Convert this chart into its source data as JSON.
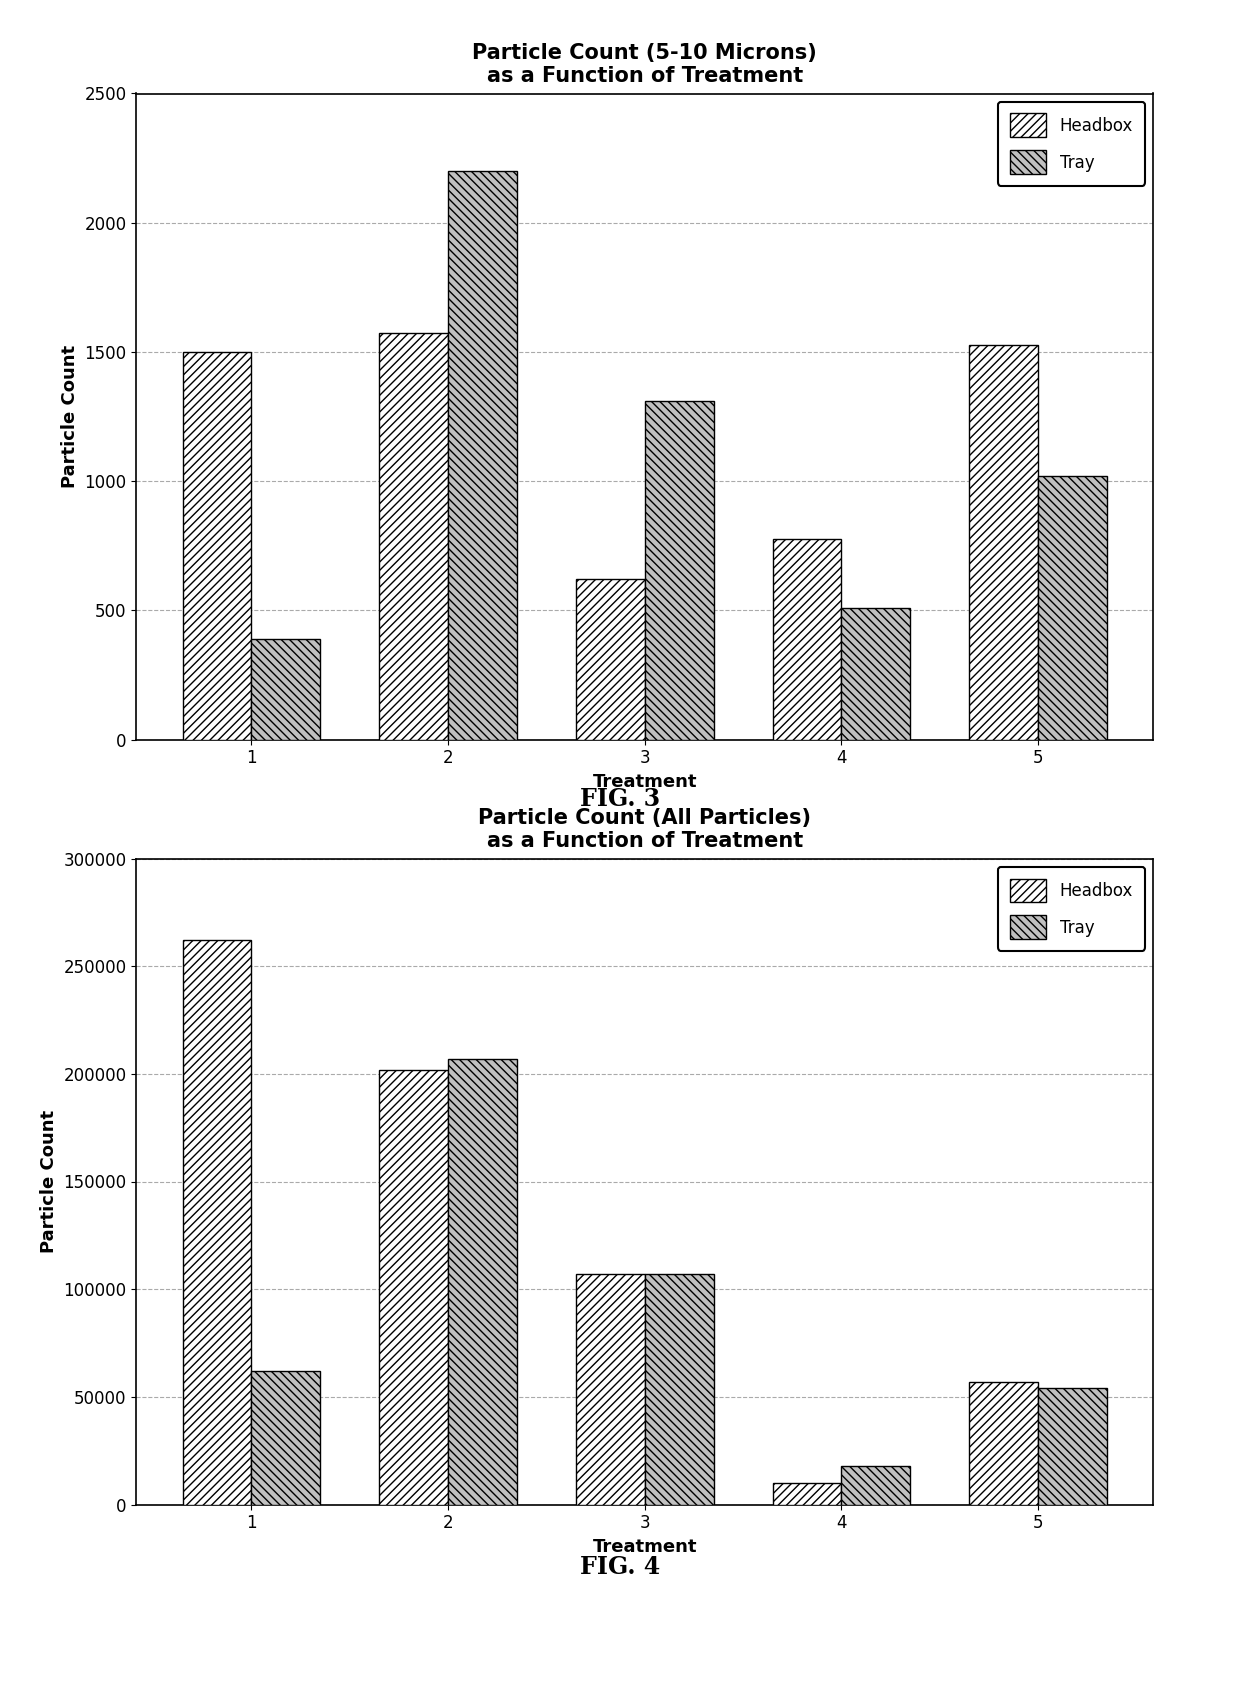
{
  "fig3": {
    "title_line1": "Particle Count (5-10 Microns)",
    "title_line2": "as a Function of Treatment",
    "xlabel": "Treatment",
    "ylabel": "Particle Count",
    "fig_label": "FIG. 3",
    "treatments": [
      1,
      2,
      3,
      4,
      5
    ],
    "headbox": [
      1500,
      1575,
      620,
      775,
      1525
    ],
    "tray": [
      390,
      2200,
      1310,
      510,
      1020
    ],
    "ylim": [
      0,
      2500
    ],
    "yticks": [
      0,
      500,
      1000,
      1500,
      2000,
      2500
    ]
  },
  "fig4": {
    "title_line1": "Particle Count (All Particles)",
    "title_line2": "as a Function of Treatment",
    "xlabel": "Treatment",
    "ylabel": "Particle Count",
    "fig_label": "FIG. 4",
    "treatments": [
      1,
      2,
      3,
      4,
      5
    ],
    "headbox": [
      262000,
      202000,
      107000,
      10000,
      57000
    ],
    "tray": [
      62000,
      207000,
      107000,
      18000,
      54000
    ],
    "ylim": [
      0,
      300000
    ],
    "yticks": [
      0,
      50000,
      100000,
      150000,
      200000,
      250000,
      300000
    ]
  },
  "bar_width": 0.35,
  "headbox_color": "#ffffff",
  "tray_color": "#c0c0c0",
  "headbox_hatch": "////",
  "tray_hatch": "\\\\\\\\",
  "legend_labels": [
    "Headbox",
    "Tray"
  ],
  "background_color": "#ffffff",
  "grid_color": "#aaaaaa",
  "title_fontsize": 15,
  "label_fontsize": 13,
  "tick_fontsize": 12,
  "fig_label_fontsize": 17,
  "legend_fontsize": 12
}
